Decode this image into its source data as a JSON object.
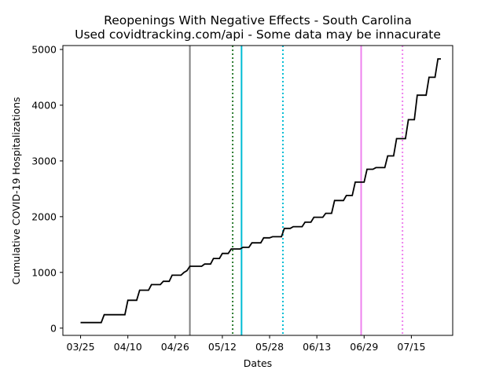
{
  "chart_data": {
    "type": "line",
    "title": "Reopenings With Negative Effects - South Carolina",
    "subtitle": "Used covidtracking.com/api - Some data may be innacurate",
    "xlabel": "Dates",
    "ylabel": "Cumulative COVID-19 Hospitalizations",
    "x_tick_labels": [
      "03/25",
      "04/10",
      "04/26",
      "05/12",
      "05/28",
      "06/13",
      "06/29",
      "07/15"
    ],
    "x_tick_days": [
      0,
      16,
      32,
      48,
      64,
      80,
      96,
      112
    ],
    "xlim_days": [
      -6,
      126
    ],
    "ylim": [
      -130,
      5070
    ],
    "y_ticks": [
      0,
      1000,
      2000,
      3000,
      4000,
      5000
    ],
    "grid": false,
    "series": [
      {
        "name": "Cumulative hospitalizations",
        "color": "#000000",
        "points": [
          [
            0,
            100
          ],
          [
            7,
            100
          ],
          [
            8,
            240
          ],
          [
            15,
            240
          ],
          [
            16,
            500
          ],
          [
            19,
            500
          ],
          [
            20,
            680
          ],
          [
            23,
            680
          ],
          [
            24,
            780
          ],
          [
            27,
            780
          ],
          [
            28,
            840
          ],
          [
            30,
            840
          ],
          [
            31,
            950
          ],
          [
            34,
            950
          ],
          [
            35,
            1000
          ],
          [
            36,
            1030
          ],
          [
            37,
            1110
          ],
          [
            41,
            1110
          ],
          [
            42,
            1150
          ],
          [
            44,
            1150
          ],
          [
            45,
            1250
          ],
          [
            47,
            1250
          ],
          [
            48,
            1340
          ],
          [
            50,
            1340
          ],
          [
            51,
            1420
          ],
          [
            54,
            1420
          ],
          [
            55,
            1450
          ],
          [
            57,
            1450
          ],
          [
            58,
            1530
          ],
          [
            61,
            1530
          ],
          [
            62,
            1620
          ],
          [
            64,
            1620
          ],
          [
            65,
            1640
          ],
          [
            68,
            1640
          ],
          [
            69,
            1790
          ],
          [
            71,
            1790
          ],
          [
            72,
            1820
          ],
          [
            75,
            1820
          ],
          [
            76,
            1900
          ],
          [
            78,
            1900
          ],
          [
            79,
            1990
          ],
          [
            82,
            1990
          ],
          [
            83,
            2060
          ],
          [
            85,
            2060
          ],
          [
            86,
            2290
          ],
          [
            89,
            2290
          ],
          [
            90,
            2380
          ],
          [
            92,
            2380
          ],
          [
            93,
            2620
          ],
          [
            96,
            2620
          ],
          [
            97,
            2850
          ],
          [
            99,
            2850
          ],
          [
            100,
            2880
          ],
          [
            103,
            2880
          ],
          [
            104,
            3090
          ],
          [
            106,
            3090
          ],
          [
            107,
            3400
          ],
          [
            110,
            3400
          ],
          [
            111,
            3740
          ],
          [
            113,
            3740
          ],
          [
            114,
            4180
          ],
          [
            117,
            4180
          ],
          [
            118,
            4500
          ],
          [
            120,
            4500
          ],
          [
            121,
            4830
          ],
          [
            122,
            4830
          ]
        ]
      }
    ],
    "reopening_lines": [
      {
        "day": 37,
        "color": "#808080",
        "style": "solid"
      },
      {
        "day": 51.5,
        "color": "#2e7d32",
        "style": "dotted"
      },
      {
        "day": 54.5,
        "color": "#00bcd4",
        "style": "solid"
      },
      {
        "day": 68.5,
        "color": "#00bcd4",
        "style": "dotted"
      },
      {
        "day": 95,
        "color": "#ee82ee",
        "style": "solid"
      },
      {
        "day": 109,
        "color": "#ee82ee",
        "style": "dotted"
      }
    ]
  }
}
